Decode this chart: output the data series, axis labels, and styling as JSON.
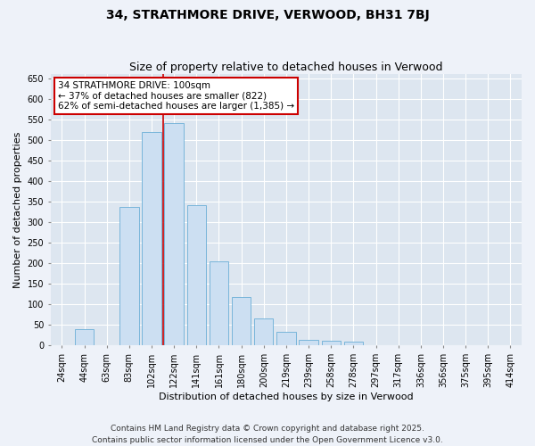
{
  "title": "34, STRATHMORE DRIVE, VERWOOD, BH31 7BJ",
  "subtitle": "Size of property relative to detached houses in Verwood",
  "xlabel": "Distribution of detached houses by size in Verwood",
  "ylabel": "Number of detached properties",
  "categories": [
    "24sqm",
    "44sqm",
    "63sqm",
    "83sqm",
    "102sqm",
    "122sqm",
    "141sqm",
    "161sqm",
    "180sqm",
    "200sqm",
    "219sqm",
    "239sqm",
    "258sqm",
    "278sqm",
    "297sqm",
    "317sqm",
    "336sqm",
    "356sqm",
    "375sqm",
    "395sqm",
    "414sqm"
  ],
  "values": [
    2,
    40,
    2,
    337,
    520,
    540,
    342,
    205,
    118,
    67,
    33,
    15,
    12,
    10,
    0,
    0,
    0,
    0,
    0,
    0,
    0
  ],
  "bar_color": "#ccdff2",
  "bar_edge_color": "#6aaed6",
  "property_line_x": 4.5,
  "property_line_label": "34 STRATHMORE DRIVE: 100sqm",
  "annotation_line1": "← 37% of detached houses are smaller (822)",
  "annotation_line2": "62% of semi-detached houses are larger (1,385) →",
  "annotation_box_color": "#ffffff",
  "annotation_box_edge": "#cc0000",
  "line_color": "#cc0000",
  "ylim": [
    0,
    660
  ],
  "yticks": [
    0,
    50,
    100,
    150,
    200,
    250,
    300,
    350,
    400,
    450,
    500,
    550,
    600,
    650
  ],
  "fig_bg_color": "#eef2f9",
  "plot_bg_color": "#dde6f0",
  "grid_color": "#ffffff",
  "footer": "Contains HM Land Registry data © Crown copyright and database right 2025.\nContains public sector information licensed under the Open Government Licence v3.0.",
  "title_fontsize": 10,
  "subtitle_fontsize": 9,
  "axis_label_fontsize": 8,
  "tick_fontsize": 7,
  "footer_fontsize": 6.5,
  "annot_fontsize": 7.5
}
